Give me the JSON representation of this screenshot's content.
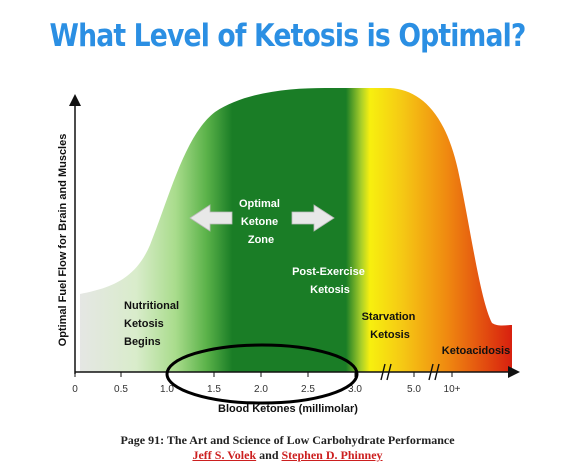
{
  "title": "What Level of Ketosis is Optimal?",
  "diagram": {
    "y_axis_label": "Optimal Fuel Flow for Brain and Muscles",
    "x_axis_label": "Blood Ketones (millimolar)",
    "x_ticks": [
      "0",
      "0.5",
      "1.0",
      "1.5",
      "2.0",
      "2.5",
      "3.0",
      "5.0",
      "10+"
    ],
    "zones": {
      "optimal": [
        "Optimal",
        "Ketone",
        "Zone"
      ],
      "nutritional": [
        "Nutritional",
        "Ketosis",
        "Begins"
      ],
      "post_exercise": [
        "Post-Exercise",
        "Ketosis"
      ],
      "starvation": [
        "Starvation",
        "Ketosis"
      ],
      "ketoacidosis": "Ketoacidosis"
    },
    "colors": {
      "light_green": "#a9dc8c",
      "dark_green": "#1a7d26",
      "yellow": "#f7f00f",
      "orange": "#f08a10",
      "red": "#d8200f",
      "highlight_ellipse": "#000000"
    }
  },
  "caption": {
    "line": "Page 91: The Art and Science of Low Carbohydrate Performance",
    "author1": "Jeff S. Volek",
    "and": "and",
    "author2": "Stephen D. Phinney"
  }
}
